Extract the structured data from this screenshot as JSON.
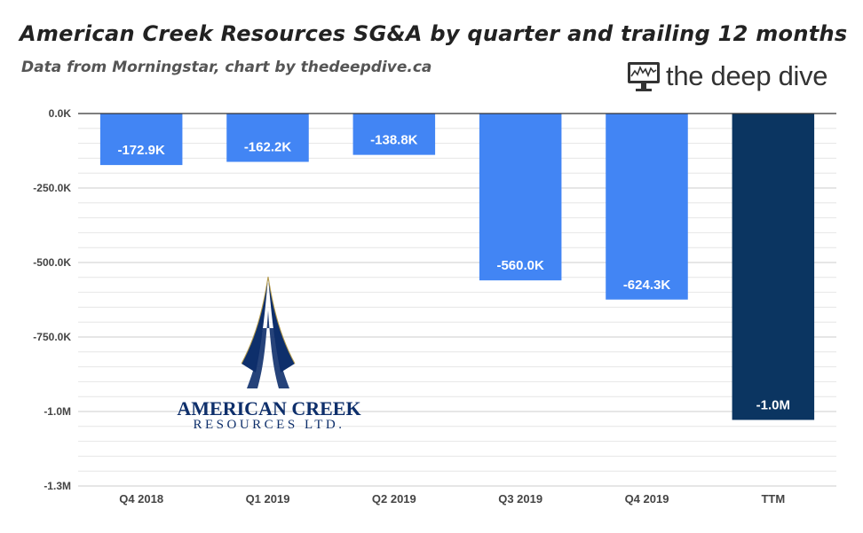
{
  "header": {
    "title": "American Creek Resources SG&A by quarter and trailing 12 months",
    "subtitle": "Data from Morningstar, chart by thedeepdive.ca"
  },
  "brand": {
    "name": "the deep dive",
    "icon": "monitor-chart-icon"
  },
  "logo": {
    "line1": "AMERICAN CREEK",
    "line2": "RESOURCES LTD.",
    "icon": "spire-logo-icon"
  },
  "chart_data": {
    "type": "bar",
    "categories": [
      "Q4 2018",
      "Q1 2019",
      "Q2 2019",
      "Q3 2019",
      "Q4 2019",
      "TTM"
    ],
    "values": [
      -172.9,
      -162.2,
      -138.8,
      -560.0,
      -624.3,
      -1028.2
    ],
    "value_units": "thousands",
    "data_labels": [
      "-172.9K",
      "-162.2K",
      "-138.8K",
      "-560.0K",
      "-624.3K",
      "-1.0M"
    ],
    "colors": [
      "#4285f4",
      "#4285f4",
      "#4285f4",
      "#4285f4",
      "#4285f4",
      "#0b3561"
    ],
    "ylim": [
      -1250,
      0
    ],
    "yticks": [
      0,
      -250,
      -500,
      -750,
      -1000,
      -1250
    ],
    "ytick_labels": [
      "0.0K",
      "-250.0K",
      "-500.0K",
      "-750.0K",
      "-1.0M",
      "-1.3M"
    ],
    "grid": true,
    "xlabel": "",
    "ylabel": "",
    "legend": "none"
  }
}
